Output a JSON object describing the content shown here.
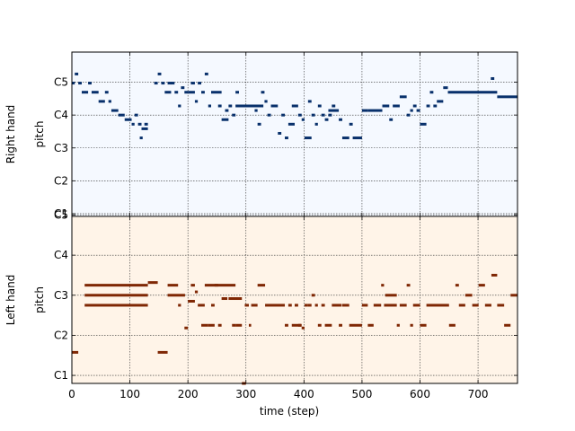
{
  "chart_data": {
    "type": "pianoroll",
    "xlabel": "time (step)",
    "xlim": [
      0,
      768
    ],
    "x_ticks": [
      0,
      100,
      200,
      300,
      400,
      500,
      600,
      700
    ],
    "ylim": [
      21,
      71
    ],
    "y_ticks": [
      {
        "value": 24,
        "label": "C1"
      },
      {
        "value": 36,
        "label": "C2"
      },
      {
        "value": 48,
        "label": "C3"
      },
      {
        "value": 60,
        "label": "C4"
      },
      {
        "value": 72,
        "label": "C5"
      }
    ],
    "grid": true,
    "tracks": [
      {
        "name": "Right hand",
        "ylabel": "pitch",
        "ylim": [
          59,
          77
        ],
        "y_ticks": [
          {
            "value": 59.3,
            "label": "C1"
          },
          {
            "value": 62.9,
            "label": "C2"
          },
          {
            "value": 66.5,
            "label": "C3"
          },
          {
            "value": 70.1,
            "label": "C4"
          },
          {
            "value": 73.7,
            "label": "C5"
          }
        ],
        "note_color": "#08306b",
        "background": "#f5f9ff",
        "notes": [
          [
            0,
            5,
            73.6
          ],
          [
            5,
            11,
            74.6
          ],
          [
            11,
            17,
            73.6
          ],
          [
            17,
            28,
            72.6
          ],
          [
            28,
            34,
            73.6
          ],
          [
            34,
            46,
            72.6
          ],
          [
            46,
            57,
            71.6
          ],
          [
            57,
            63,
            72.6
          ],
          [
            63,
            68,
            71.6
          ],
          [
            68,
            80,
            70.6
          ],
          [
            80,
            91,
            70.1
          ],
          [
            91,
            103,
            69.6
          ],
          [
            103,
            108,
            69.1
          ],
          [
            108,
            114,
            70.1
          ],
          [
            114,
            120,
            69.1
          ],
          [
            117,
            122,
            67.6
          ],
          [
            120,
            131,
            68.6
          ],
          [
            125,
            131,
            69.1
          ],
          [
            142,
            148,
            73.6
          ],
          [
            148,
            154,
            74.6
          ],
          [
            154,
            160,
            73.6
          ],
          [
            160,
            171,
            72.6
          ],
          [
            165,
            172,
            73.6
          ],
          [
            171,
            177,
            73.6
          ],
          [
            177,
            183,
            72.6
          ],
          [
            183,
            188,
            71.1
          ],
          [
            188,
            194,
            73.1
          ],
          [
            194,
            200,
            72.6
          ],
          [
            200,
            212,
            72.6
          ],
          [
            205,
            212,
            73.6
          ],
          [
            212,
            217,
            71.6
          ],
          [
            217,
            223,
            73.6
          ],
          [
            223,
            229,
            72.6
          ],
          [
            229,
            235,
            74.6
          ],
          [
            235,
            240,
            71.1
          ],
          [
            240,
            258,
            72.6
          ],
          [
            252,
            258,
            71.1
          ],
          [
            258,
            270,
            69.6
          ],
          [
            264,
            270,
            70.6
          ],
          [
            270,
            276,
            71.1
          ],
          [
            276,
            282,
            70.1
          ],
          [
            282,
            288,
            72.6
          ],
          [
            282,
            330,
            71.1
          ],
          [
            315,
            320,
            70.6
          ],
          [
            320,
            326,
            69.1
          ],
          [
            326,
            332,
            72.6
          ],
          [
            332,
            337,
            71.6
          ],
          [
            337,
            343,
            70.1
          ],
          [
            343,
            355,
            71.1
          ],
          [
            355,
            361,
            68.1
          ],
          [
            361,
            367,
            70.1
          ],
          [
            367,
            373,
            67.6
          ],
          [
            373,
            384,
            69.1
          ],
          [
            379,
            390,
            71.1
          ],
          [
            390,
            396,
            70.1
          ],
          [
            396,
            401,
            69.6
          ],
          [
            401,
            413,
            67.6
          ],
          [
            407,
            413,
            71.6
          ],
          [
            413,
            419,
            70.1
          ],
          [
            419,
            424,
            69.1
          ],
          [
            424,
            430,
            71.1
          ],
          [
            430,
            436,
            70.1
          ],
          [
            436,
            442,
            69.6
          ],
          [
            442,
            448,
            70.1
          ],
          [
            442,
            460,
            70.6
          ],
          [
            448,
            454,
            71.1
          ],
          [
            460,
            466,
            69.6
          ],
          [
            466,
            478,
            67.6
          ],
          [
            478,
            484,
            69.1
          ],
          [
            484,
            500,
            67.6
          ],
          [
            500,
            510,
            70.6
          ],
          [
            510,
            535,
            70.6
          ],
          [
            535,
            547,
            71.1
          ],
          [
            547,
            553,
            69.6
          ],
          [
            553,
            565,
            71.1
          ],
          [
            565,
            577,
            72.1
          ],
          [
            577,
            583,
            70.1
          ],
          [
            583,
            588,
            70.6
          ],
          [
            588,
            594,
            71.1
          ],
          [
            594,
            600,
            70.6
          ],
          [
            600,
            611,
            69.1
          ],
          [
            611,
            617,
            71.1
          ],
          [
            617,
            623,
            72.6
          ],
          [
            623,
            629,
            71.1
          ],
          [
            629,
            640,
            71.6
          ],
          [
            640,
            648,
            73.1
          ],
          [
            648,
            733,
            72.6
          ],
          [
            722,
            728,
            74.1
          ],
          [
            733,
            768,
            72.1
          ]
        ]
      },
      {
        "name": "Left hand",
        "ylabel": "pitch",
        "ylim": [
          21,
          71
        ],
        "y_ticks": [
          {
            "value": 23.4,
            "label": "C1"
          },
          {
            "value": 35.4,
            "label": "C2"
          },
          {
            "value": 47.4,
            "label": "C3"
          },
          {
            "value": 59.4,
            "label": "C4"
          },
          {
            "value": 71.4,
            "label": "C5"
          }
        ],
        "note_color": "#7f2704",
        "background": "#fff4e8",
        "notes": [
          [
            0,
            11,
            30.3
          ],
          [
            22,
            131,
            50.4
          ],
          [
            22,
            131,
            47.4
          ],
          [
            22,
            131,
            44.4
          ],
          [
            131,
            148,
            51.2
          ],
          [
            148,
            165,
            30.3
          ],
          [
            165,
            183,
            50.4
          ],
          [
            165,
            195,
            47.4
          ],
          [
            183,
            188,
            44.4
          ],
          [
            194,
            200,
            37.6
          ],
          [
            200,
            212,
            45.6
          ],
          [
            205,
            212,
            50.4
          ],
          [
            212,
            217,
            48.4
          ],
          [
            217,
            229,
            44.4
          ],
          [
            223,
            235,
            38.4
          ],
          [
            229,
            282,
            50.4
          ],
          [
            235,
            246,
            38.4
          ],
          [
            240,
            246,
            44.4
          ],
          [
            246,
            252,
            50.4
          ],
          [
            252,
            258,
            38.4
          ],
          [
            258,
            268,
            46.4
          ],
          [
            270,
            293,
            46.4
          ],
          [
            276,
            282,
            38.4
          ],
          [
            282,
            288,
            38.4
          ],
          [
            288,
            293,
            38.4
          ],
          [
            293,
            300,
            21.0
          ],
          [
            298,
            305,
            44.4
          ],
          [
            305,
            309,
            38.4
          ],
          [
            309,
            320,
            44.4
          ],
          [
            320,
            333,
            50.4
          ],
          [
            333,
            367,
            44.4
          ],
          [
            367,
            373,
            38.4
          ],
          [
            373,
            379,
            44.4
          ],
          [
            379,
            395,
            38.4
          ],
          [
            384,
            390,
            44.4
          ],
          [
            390,
            396,
            38.4
          ],
          [
            396,
            401,
            37.6
          ],
          [
            401,
            407,
            44.4
          ],
          [
            407,
            413,
            44.4
          ],
          [
            413,
            419,
            47.4
          ],
          [
            419,
            424,
            44.4
          ],
          [
            424,
            430,
            38.4
          ],
          [
            430,
            436,
            44.4
          ],
          [
            436,
            448,
            38.4
          ],
          [
            448,
            465,
            44.4
          ],
          [
            460,
            466,
            38.4
          ],
          [
            466,
            478,
            44.4
          ],
          [
            478,
            500,
            38.4
          ],
          [
            500,
            510,
            44.4
          ],
          [
            510,
            520,
            38.4
          ],
          [
            520,
            533,
            44.4
          ],
          [
            533,
            538,
            50.4
          ],
          [
            538,
            560,
            44.4
          ],
          [
            540,
            560,
            47.4
          ],
          [
            560,
            565,
            38.4
          ],
          [
            565,
            577,
            44.4
          ],
          [
            577,
            583,
            50.4
          ],
          [
            583,
            588,
            38.4
          ],
          [
            588,
            600,
            44.4
          ],
          [
            600,
            611,
            38.4
          ],
          [
            611,
            650,
            44.4
          ],
          [
            650,
            661,
            38.4
          ],
          [
            661,
            667,
            50.4
          ],
          [
            667,
            678,
            44.4
          ],
          [
            678,
            690,
            47.4
          ],
          [
            690,
            701,
            44.4
          ],
          [
            701,
            712,
            50.4
          ],
          [
            712,
            723,
            44.4
          ],
          [
            723,
            733,
            53.4
          ],
          [
            733,
            745,
            44.4
          ],
          [
            745,
            756,
            38.4
          ],
          [
            756,
            768,
            47.4
          ]
        ]
      }
    ]
  }
}
